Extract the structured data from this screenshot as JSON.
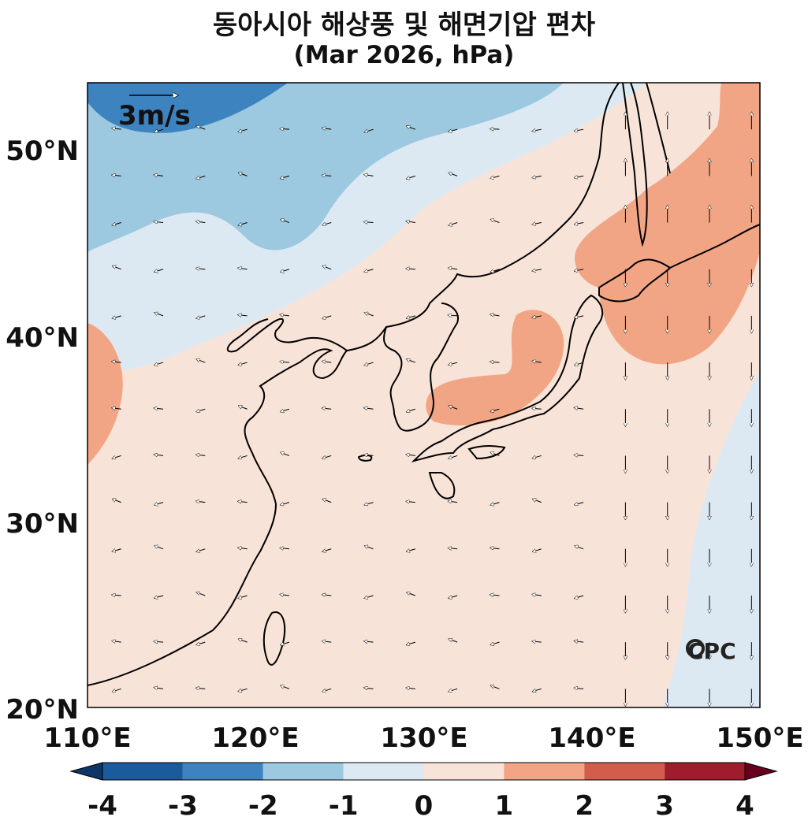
{
  "title": {
    "line1": "동아시아 해상풍 및 해면기압 편차",
    "line2": "(Mar 2026, hPa)"
  },
  "reference_vector": {
    "label": "3m/s"
  },
  "watermark": "CPC",
  "colorbar": {
    "ticks": [
      "-4",
      "-3",
      "-2",
      "-1",
      "0",
      "1",
      "2",
      "3",
      "4"
    ],
    "colors": [
      "#1b5a9c",
      "#3d83c0",
      "#9cc8e0",
      "#dde9f2",
      "#f8e3d8",
      "#f2a585",
      "#d25d4c",
      "#9e1c2c"
    ],
    "extend_low_color": "#0d3668",
    "extend_high_color": "#67001f"
  },
  "chart_data": {
    "type": "heatmap",
    "title": "동아시아 해상풍 및 해면기압 편차 (Mar 2026, hPa)",
    "xlim": [
      110,
      150
    ],
    "ylim": [
      20,
      53.5
    ],
    "x_ticks": [
      "110°E",
      "120°E",
      "130°E",
      "140°E",
      "150°E"
    ],
    "y_ticks": [
      "20°N",
      "30°N",
      "40°N",
      "50°N"
    ],
    "field": "sea level pressure anomaly (hPa)",
    "levels": [
      -4,
      -3,
      -2,
      -1,
      0,
      1,
      2,
      3,
      4
    ],
    "regions": [
      {
        "area": "Sea of Okhotsk / Sakhalin / N Japan",
        "anomaly_range": [
          1,
          2
        ]
      },
      {
        "area": "East Sea (Japan Sea)",
        "anomaly_range": [
          1,
          2
        ]
      },
      {
        "area": "Western edge near 37°N 110°E",
        "anomaly_range": [
          1,
          2
        ]
      },
      {
        "area": "Korea, Japan, E China, NW Pacific",
        "anomaly_range": [
          0,
          1
        ]
      },
      {
        "area": "N China / Mongolia",
        "anomaly_range": [
          -1,
          0
        ]
      },
      {
        "area": "Far east Pacific near 150°E",
        "anomaly_range": [
          -1,
          0
        ]
      },
      {
        "area": "Northwest corner (Mongolia)",
        "anomaly_range": [
          -3,
          -1
        ]
      }
    ],
    "vector_reference_speed": "3m/s"
  }
}
